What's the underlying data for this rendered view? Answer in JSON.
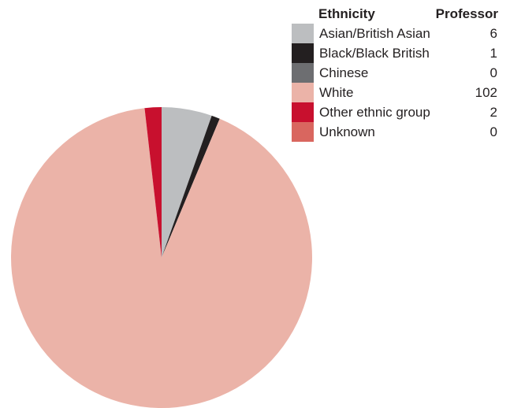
{
  "chart_data": {
    "type": "pie",
    "legend": {
      "category_header": "Ethnicity",
      "value_header": "Professor"
    },
    "slices": [
      {
        "label": "Asian/British Asian",
        "value": 6,
        "display_value": "6",
        "color": "#bcbec0"
      },
      {
        "label": "Black/Black British",
        "value": 1,
        "display_value": "1",
        "color": "#231f20"
      },
      {
        "label": "Chinese",
        "value": 0,
        "display_value": "0",
        "color": "#6d6e71"
      },
      {
        "label": "White",
        "value": 102,
        "display_value": "102",
        "color": "#ebb3a8"
      },
      {
        "label": "Other ethnic group",
        "value": 2,
        "display_value": "2",
        "color": "#c8102e"
      },
      {
        "label": "Unknown",
        "value": 0,
        "display_value": "0",
        "color": "#d9665f"
      }
    ]
  }
}
